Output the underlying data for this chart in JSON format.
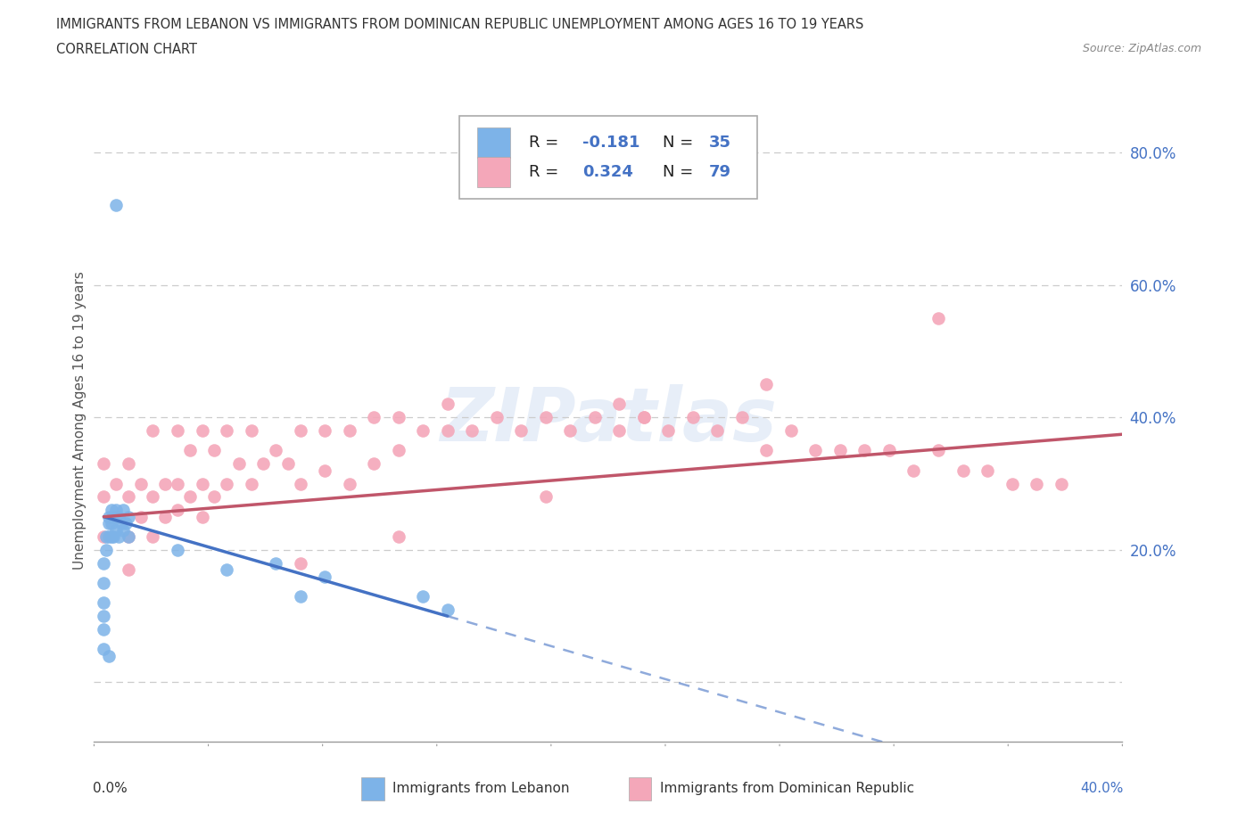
{
  "title_line1": "IMMIGRANTS FROM LEBANON VS IMMIGRANTS FROM DOMINICAN REPUBLIC UNEMPLOYMENT AMONG AGES 16 TO 19 YEARS",
  "title_line2": "CORRELATION CHART",
  "source": "Source: ZipAtlas.com",
  "ylabel": "Unemployment Among Ages 16 to 19 years",
  "xlim": [
    -0.004,
    0.415
  ],
  "ylim": [
    -0.09,
    0.88
  ],
  "yticks": [
    0.0,
    0.2,
    0.4,
    0.6,
    0.8
  ],
  "ytick_labels": [
    "",
    "20.0%",
    "40.0%",
    "60.0%",
    "80.0%"
  ],
  "lebanon_color": "#7db3e8",
  "dominican_color": "#f4a7b9",
  "trend_lebanon_color": "#4472c4",
  "trend_dominican_color": "#c0566a",
  "lebanon_R": -0.181,
  "lebanon_N": 35,
  "dominican_R": 0.324,
  "dominican_N": 79,
  "blue_text_color": "#4472c4",
  "watermark_color": "#b0c8e8",
  "leb_x": [
    0.0,
    0.0,
    0.0,
    0.0,
    0.0,
    0.0,
    0.001,
    0.001,
    0.002,
    0.002,
    0.002,
    0.003,
    0.003,
    0.003,
    0.004,
    0.004,
    0.005,
    0.005,
    0.006,
    0.006,
    0.007,
    0.008,
    0.008,
    0.009,
    0.01,
    0.01,
    0.03,
    0.05,
    0.07,
    0.08,
    0.09,
    0.13,
    0.14,
    0.005,
    0.002
  ],
  "leb_y": [
    0.05,
    0.08,
    0.1,
    0.12,
    0.15,
    0.18,
    0.2,
    0.22,
    0.22,
    0.24,
    0.25,
    0.22,
    0.24,
    0.26,
    0.22,
    0.25,
    0.23,
    0.26,
    0.22,
    0.25,
    0.24,
    0.23,
    0.26,
    0.24,
    0.22,
    0.25,
    0.2,
    0.17,
    0.18,
    0.13,
    0.16,
    0.13,
    0.11,
    0.72,
    0.04
  ],
  "dom_x": [
    0.0,
    0.0,
    0.0,
    0.005,
    0.005,
    0.01,
    0.01,
    0.01,
    0.015,
    0.015,
    0.02,
    0.02,
    0.02,
    0.025,
    0.025,
    0.03,
    0.03,
    0.03,
    0.035,
    0.035,
    0.04,
    0.04,
    0.045,
    0.045,
    0.05,
    0.05,
    0.055,
    0.06,
    0.06,
    0.065,
    0.07,
    0.075,
    0.08,
    0.08,
    0.09,
    0.09,
    0.1,
    0.1,
    0.11,
    0.11,
    0.12,
    0.12,
    0.13,
    0.14,
    0.14,
    0.15,
    0.16,
    0.17,
    0.18,
    0.19,
    0.2,
    0.21,
    0.21,
    0.22,
    0.23,
    0.24,
    0.25,
    0.26,
    0.27,
    0.28,
    0.29,
    0.3,
    0.31,
    0.32,
    0.33,
    0.34,
    0.35,
    0.36,
    0.37,
    0.38,
    0.39,
    0.34,
    0.27,
    0.22,
    0.18,
    0.12,
    0.08,
    0.04,
    0.01
  ],
  "dom_y": [
    0.22,
    0.28,
    0.33,
    0.25,
    0.3,
    0.22,
    0.28,
    0.33,
    0.25,
    0.3,
    0.22,
    0.28,
    0.38,
    0.25,
    0.3,
    0.26,
    0.3,
    0.38,
    0.28,
    0.35,
    0.3,
    0.38,
    0.28,
    0.35,
    0.3,
    0.38,
    0.33,
    0.3,
    0.38,
    0.33,
    0.35,
    0.33,
    0.3,
    0.38,
    0.32,
    0.38,
    0.3,
    0.38,
    0.33,
    0.4,
    0.35,
    0.4,
    0.38,
    0.38,
    0.42,
    0.38,
    0.4,
    0.38,
    0.4,
    0.38,
    0.4,
    0.38,
    0.42,
    0.4,
    0.38,
    0.4,
    0.38,
    0.4,
    0.35,
    0.38,
    0.35,
    0.35,
    0.35,
    0.35,
    0.32,
    0.35,
    0.32,
    0.32,
    0.3,
    0.3,
    0.3,
    0.55,
    0.45,
    0.4,
    0.28,
    0.22,
    0.18,
    0.25,
    0.17
  ]
}
